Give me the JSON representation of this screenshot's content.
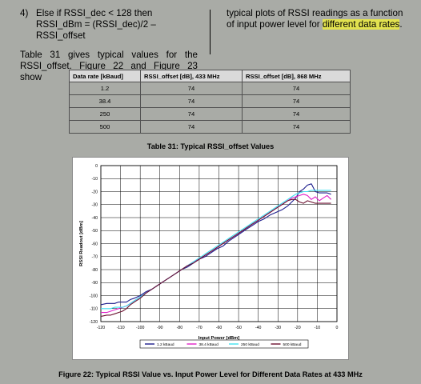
{
  "text": {
    "item_number": "4)",
    "item_text": "Else if RSSI_dec < 128 then RSSI_dBm = (RSSI_dec)/2 – RSSI_offset",
    "table_intro": "Table 31 gives typical values for the RSSI_offset. Figure 22 and Figure 23 show",
    "right_text_1": "typical plots of RSSI readings as a function of input power level for ",
    "right_text_highlight": "different data rates",
    "right_text_2": "."
  },
  "table": {
    "headers": [
      "Data rate [kBaud]",
      "RSSI_offset [dB], 433 MHz",
      "RSSI_offset [dB], 868 MHz"
    ],
    "rows": [
      [
        "1.2",
        "74",
        "74"
      ],
      [
        "38.4",
        "74",
        "74"
      ],
      [
        "250",
        "74",
        "74"
      ],
      [
        "500",
        "74",
        "74"
      ]
    ],
    "caption": "Table 31: Typical RSSI_offset Values"
  },
  "figure_caption": "Figure 22: Typical RSSI Value vs. Input Power Level for Different Data Rates at 433 MHz",
  "chart_data": {
    "type": "line",
    "xlabel": "Input Power [dBm]",
    "ylabel": "RSSI Readout [dBm]",
    "xlim": [
      -120,
      0
    ],
    "ylim": [
      -120,
      0
    ],
    "x_ticks": [
      -120,
      -110,
      -100,
      -90,
      -80,
      -70,
      -60,
      -50,
      -40,
      -30,
      -20,
      -10,
      0
    ],
    "y_ticks": [
      0,
      -10,
      -20,
      -30,
      -40,
      -50,
      -60,
      -70,
      -80,
      -90,
      -100,
      -110,
      -120
    ],
    "grid": true,
    "legend_position": "bottom",
    "series": [
      {
        "name": "1.2 kBaud",
        "color": "#1c1c8c",
        "x": [
          -120,
          -117,
          -115,
          -113,
          -111,
          -109,
          -107,
          -105,
          -103,
          -100,
          -97,
          -94,
          -91,
          -88,
          -85,
          -82,
          -79,
          -76,
          -73,
          -70,
          -67,
          -64,
          -61,
          -58,
          -55,
          -52,
          -49,
          -46,
          -43,
          -40,
          -37,
          -34,
          -31,
          -28,
          -25,
          -23,
          -21,
          -19,
          -17,
          -15,
          -13,
          -11,
          -9,
          -7,
          -5,
          -3
        ],
        "y": [
          -107,
          -106,
          -106,
          -106,
          -105,
          -105,
          -105,
          -103,
          -102,
          -100,
          -97,
          -95,
          -92,
          -89,
          -86,
          -83,
          -80,
          -78,
          -75,
          -72,
          -70,
          -67,
          -64,
          -62,
          -58,
          -55,
          -52,
          -49,
          -46,
          -43,
          -41,
          -38,
          -36,
          -34,
          -31,
          -28,
          -25,
          -20,
          -18,
          -15,
          -14,
          -20,
          -21,
          -21,
          -21,
          -22
        ]
      },
      {
        "name": "38.4 kBaud",
        "color": "#e020c8",
        "x": [
          -120,
          -117,
          -115,
          -113,
          -111,
          -109,
          -107,
          -105,
          -103,
          -100,
          -97,
          -94,
          -91,
          -88,
          -85,
          -82,
          -79,
          -76,
          -73,
          -70,
          -67,
          -64,
          -61,
          -58,
          -55,
          -52,
          -49,
          -46,
          -43,
          -40,
          -37,
          -34,
          -31,
          -28,
          -25,
          -23,
          -21,
          -19,
          -17,
          -15,
          -13,
          -11,
          -9,
          -7,
          -5,
          -3
        ],
        "y": [
          -113,
          -113,
          -112,
          -111,
          -110,
          -109,
          -108,
          -106,
          -104,
          -101,
          -98,
          -95,
          -92,
          -89,
          -86,
          -83,
          -80,
          -77,
          -74,
          -72,
          -69,
          -66,
          -63,
          -60,
          -57,
          -54,
          -51,
          -48,
          -45,
          -42,
          -39,
          -36,
          -33,
          -30,
          -27,
          -25,
          -24,
          -23,
          -22,
          -23,
          -26,
          -24,
          -27,
          -25,
          -23,
          -26
        ]
      },
      {
        "name": "250 kBaud",
        "color": "#40e0f0",
        "x": [
          -120,
          -117,
          -115,
          -113,
          -111,
          -109,
          -107,
          -105,
          -103,
          -100,
          -97,
          -94,
          -91,
          -88,
          -85,
          -82,
          -79,
          -76,
          -73,
          -70,
          -67,
          -64,
          -61,
          -58,
          -55,
          -52,
          -49,
          -46,
          -43,
          -40,
          -37,
          -34,
          -31,
          -28,
          -25,
          -23,
          -21,
          -19,
          -17,
          -15,
          -13,
          -11,
          -9,
          -7,
          -5,
          -3
        ],
        "y": [
          -110,
          -110,
          -110,
          -109,
          -109,
          -109,
          -108,
          -106,
          -104,
          -101,
          -98,
          -95,
          -92,
          -89,
          -86,
          -83,
          -80,
          -77,
          -74,
          -71,
          -68,
          -65,
          -62,
          -59,
          -56,
          -53,
          -50,
          -47,
          -44,
          -41,
          -38,
          -35,
          -32,
          -29,
          -26,
          -24,
          -22,
          -21,
          -20,
          -20,
          -19,
          -19,
          -19,
          -19,
          -19,
          -19
        ]
      },
      {
        "name": "500 kBaud",
        "color": "#6b1030",
        "x": [
          -120,
          -117,
          -115,
          -113,
          -111,
          -109,
          -107,
          -105,
          -103,
          -100,
          -97,
          -94,
          -91,
          -88,
          -85,
          -82,
          -79,
          -76,
          -73,
          -70,
          -67,
          -64,
          -61,
          -58,
          -55,
          -52,
          -49,
          -46,
          -43,
          -40,
          -37,
          -34,
          -31,
          -28,
          -25,
          -23,
          -21,
          -19,
          -17,
          -15,
          -13,
          -11,
          -9,
          -7,
          -5,
          -3
        ],
        "y": [
          -116,
          -115,
          -115,
          -114,
          -113,
          -112,
          -110,
          -107,
          -105,
          -102,
          -98,
          -95,
          -92,
          -89,
          -86,
          -83,
          -80,
          -77,
          -75,
          -72,
          -69,
          -66,
          -63,
          -60,
          -57,
          -54,
          -51,
          -48,
          -45,
          -42,
          -39,
          -36,
          -33,
          -30,
          -27,
          -26,
          -26,
          -28,
          -29,
          -27,
          -28,
          -29,
          -29,
          -29,
          -29,
          -29
        ]
      }
    ]
  }
}
